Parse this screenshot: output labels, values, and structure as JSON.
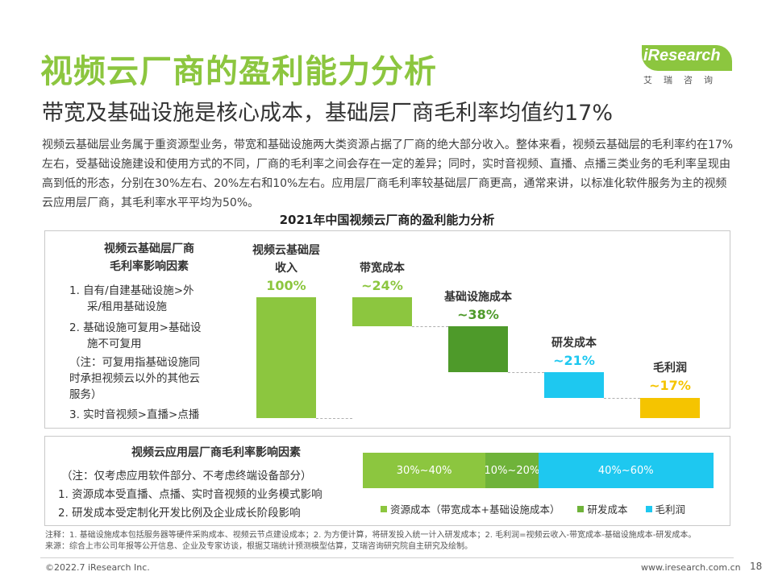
{
  "title": "视频云厂商的盈利能力分析",
  "subtitle": "带宽及基础设施是核心成本，基础层厂商毛利率均值约17%",
  "logo": {
    "brand": "iResearch",
    "brand_cn": "艾瑞咨询"
  },
  "intro": "视频云基础层业务属于重资源型业务，带宽和基础设施两大类资源占据了厂商的绝大部分收入。整体来看，视频云基础层的毛利率约在17%左右，受基础设施建设和使用方式的不同，厂商的毛利率之间会存在一定的差异；同时，实时音视频、直播、点播三类业务的毛利率呈现由高到低的形态，分别在30%左右、20%左右和10%左右。应用层厂商毛利率较基础层厂商更高，通常来讲，以标准化软件服务为主的视频云应用层厂商，其毛利率水平平均为50%。",
  "chart_title": "2021年中国视频云厂商的盈利能力分析",
  "basic_factors": {
    "heading_line1": "视频云基础层厂商",
    "heading_line2": "毛利率影响因素",
    "item1_line1": "1.  自有/自建基础设施>外",
    "item1_line2": "采/租用基础设施",
    "item2_line1": "2.  基础设施可复用>基础设",
    "item2_line2": "施不可复用",
    "note_line1": "（注：可复用指基础设施同",
    "note_line2": "时承担视频云以外的其他云",
    "note_line3": "服务）",
    "item3": "3.  实时音视频>直播>点播"
  },
  "waterfall": {
    "revenue_label_line1": "视频云基础层",
    "revenue_label_line2": "收入",
    "revenue_value": "100%",
    "bandwidth_label": "带宽成本",
    "bandwidth_value": "~24%",
    "infra_label": "基础设施成本",
    "infra_value": "~38%",
    "rd_label": "研发成本",
    "rd_value": "~21%",
    "profit_label": "毛利润",
    "profit_value": "~17%"
  },
  "chart_data": [
    {
      "type": "bar",
      "categories": [
        "视频云基础层收入",
        "带宽成本",
        "基础设施成本",
        "研发成本",
        "毛利润"
      ],
      "values": [
        100,
        24,
        38,
        21,
        17
      ],
      "base": [
        0,
        76,
        38,
        17,
        0
      ],
      "colors": [
        "#8cc63f",
        "#8cc63f",
        "#4e9a2a",
        "#1ec8f0",
        "#f5c400"
      ]
    },
    {
      "type": "bar",
      "categories": [
        "资源成本（带宽成本+基础设施成本）",
        "研发成本",
        "毛利润"
      ],
      "ranges": [
        "30%~40%",
        "10%~20%",
        "40%~60%"
      ],
      "values": [
        35,
        15,
        50
      ],
      "colors": [
        "#8cc63f",
        "#6fb33a",
        "#1ec8f0"
      ]
    }
  ],
  "app_factors": {
    "heading": "视频云应用层厂商毛利率影响因素",
    "note": "（注：仅考虑应用软件部分、不考虑终端设备部分）",
    "item1": "1.  资源成本受直播、点播、实时音视频的业务模式影响",
    "item2": "2.  研发成本受定制化开发比例及企业成长阶段影响"
  },
  "stacked": {
    "seg1": "30%~40%",
    "seg2": "10%~20%",
    "seg3": "40%~60%",
    "legend1": "资源成本（带宽成本+基础设施成本）",
    "legend2": "研发成本",
    "legend3": "毛利润"
  },
  "notes": {
    "line1": "注释：1. 基础设施成本包括服务器等硬件采购成本、视频云节点建设成本；2. 为方便计算，将研发投入统一计入研发成本；2. 毛利润=视频云收入-带宽成本-基础设施成本-研发成本。",
    "line2": "来源：综合上市公司年报等公开信息、企业及专家访谈，根据艾瑞统计预测模型估算，艾瑞咨询研究院自主研究及绘制。"
  },
  "footer": {
    "copyright": "©2022.7 iResearch Inc.",
    "website": "www.iresearch.com.cn",
    "page": "18"
  }
}
